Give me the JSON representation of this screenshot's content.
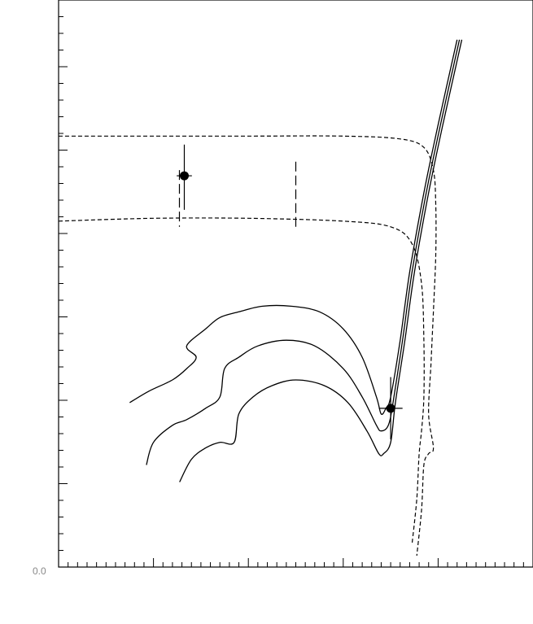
{
  "chart_data": {
    "type": "line",
    "title": "",
    "xlabel": "",
    "ylabel": "",
    "xlim": [
      0,
      1
    ],
    "ylim": [
      0,
      1
    ],
    "grid": false,
    "corner_label": "0.0",
    "series": [
      {
        "style": "solid",
        "values": [
          [
            0.84,
            0.93
          ],
          [
            0.8,
            0.78
          ],
          [
            0.77,
            0.66
          ],
          [
            0.74,
            0.52
          ],
          [
            0.72,
            0.4
          ],
          [
            0.7,
            0.3
          ],
          [
            0.69,
            0.28
          ],
          [
            0.68,
            0.27
          ],
          [
            0.67,
            0.3
          ],
          [
            0.64,
            0.37
          ],
          [
            0.6,
            0.42
          ],
          [
            0.55,
            0.45
          ],
          [
            0.49,
            0.46
          ],
          [
            0.43,
            0.46
          ],
          [
            0.38,
            0.45
          ],
          [
            0.34,
            0.44
          ],
          [
            0.31,
            0.42
          ],
          [
            0.27,
            0.39
          ],
          [
            0.29,
            0.37
          ],
          [
            0.27,
            0.35
          ],
          [
            0.24,
            0.33
          ],
          [
            0.19,
            0.31
          ],
          [
            0.15,
            0.29
          ]
        ]
      },
      {
        "style": "solid",
        "values": [
          [
            0.845,
            0.93
          ],
          [
            0.805,
            0.78
          ],
          [
            0.775,
            0.66
          ],
          [
            0.745,
            0.52
          ],
          [
            0.725,
            0.4
          ],
          [
            0.705,
            0.29
          ],
          [
            0.695,
            0.25
          ],
          [
            0.68,
            0.24
          ],
          [
            0.67,
            0.25
          ],
          [
            0.64,
            0.3
          ],
          [
            0.6,
            0.35
          ],
          [
            0.54,
            0.39
          ],
          [
            0.48,
            0.4
          ],
          [
            0.42,
            0.39
          ],
          [
            0.38,
            0.37
          ],
          [
            0.35,
            0.35
          ],
          [
            0.34,
            0.3
          ],
          [
            0.31,
            0.28
          ],
          [
            0.27,
            0.26
          ],
          [
            0.24,
            0.25
          ],
          [
            0.2,
            0.22
          ],
          [
            0.185,
            0.18
          ]
        ]
      },
      {
        "style": "solid",
        "values": [
          [
            0.85,
            0.93
          ],
          [
            0.81,
            0.78
          ],
          [
            0.78,
            0.66
          ],
          [
            0.75,
            0.52
          ],
          [
            0.73,
            0.4
          ],
          [
            0.71,
            0.29
          ],
          [
            0.7,
            0.22
          ],
          [
            0.685,
            0.2
          ],
          [
            0.675,
            0.2
          ],
          [
            0.65,
            0.24
          ],
          [
            0.61,
            0.29
          ],
          [
            0.56,
            0.32
          ],
          [
            0.5,
            0.33
          ],
          [
            0.45,
            0.32
          ],
          [
            0.41,
            0.3
          ],
          [
            0.38,
            0.27
          ],
          [
            0.37,
            0.22
          ],
          [
            0.34,
            0.22
          ],
          [
            0.31,
            0.21
          ],
          [
            0.28,
            0.19
          ],
          [
            0.255,
            0.15
          ]
        ]
      },
      {
        "style": "dashed",
        "values": [
          [
            0.0,
            0.76
          ],
          [
            0.2,
            0.76
          ],
          [
            0.4,
            0.76
          ],
          [
            0.6,
            0.76
          ],
          [
            0.72,
            0.755
          ],
          [
            0.77,
            0.74
          ],
          [
            0.79,
            0.7
          ],
          [
            0.795,
            0.64
          ],
          [
            0.795,
            0.55
          ],
          [
            0.79,
            0.45
          ],
          [
            0.785,
            0.36
          ],
          [
            0.78,
            0.27
          ],
          [
            0.79,
            0.21
          ],
          [
            0.78,
            0.2
          ],
          [
            0.77,
            0.18
          ],
          [
            0.765,
            0.1
          ],
          [
            0.755,
            0.02
          ]
        ]
      },
      {
        "style": "dashed",
        "values": [
          [
            0.0,
            0.61
          ],
          [
            0.2,
            0.615
          ],
          [
            0.4,
            0.615
          ],
          [
            0.6,
            0.61
          ],
          [
            0.7,
            0.6
          ],
          [
            0.745,
            0.57
          ],
          [
            0.765,
            0.5
          ],
          [
            0.77,
            0.4
          ],
          [
            0.77,
            0.3
          ],
          [
            0.765,
            0.24
          ],
          [
            0.76,
            0.2
          ],
          [
            0.755,
            0.12
          ],
          [
            0.745,
            0.04
          ]
        ]
      }
    ],
    "points": [
      {
        "x": 0.265,
        "y": 0.69,
        "xerr": 0.016,
        "yerr_low": 0.06,
        "yerr_high": 0.055,
        "dashed_err": true
      },
      {
        "x": 0.7,
        "y": 0.28,
        "xerr": 0.025,
        "yerr_low": 0.055,
        "yerr_high": 0.055,
        "dashed_err": false
      }
    ],
    "markers": [
      {
        "x": 0.5,
        "y_from": 0.6,
        "y_to": 0.72
      }
    ]
  }
}
